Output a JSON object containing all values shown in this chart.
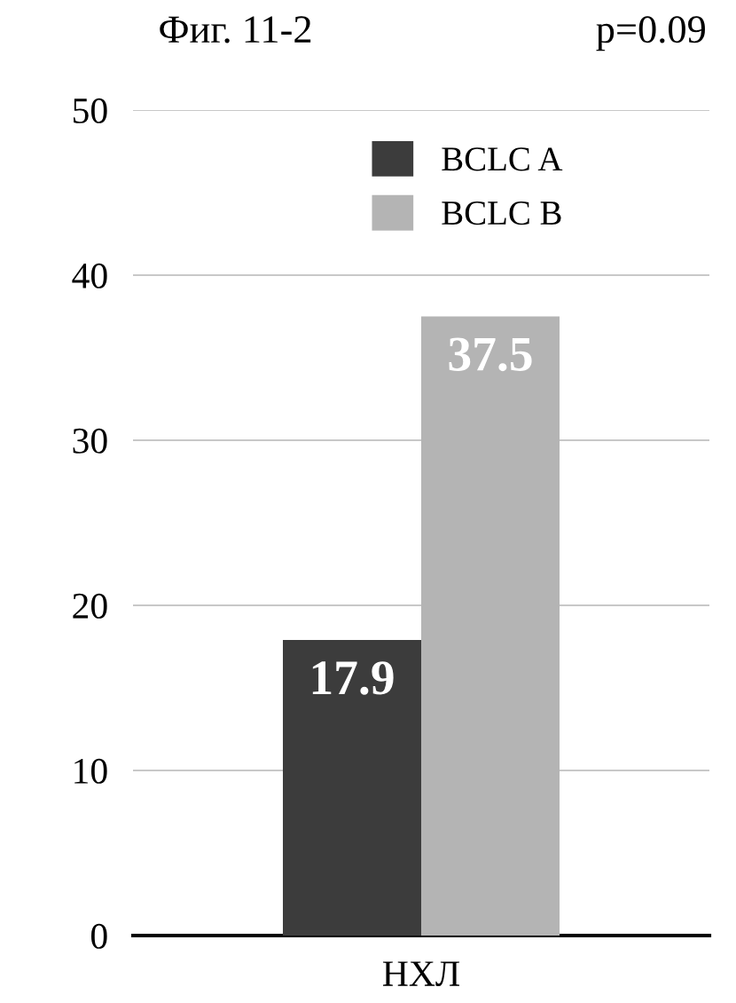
{
  "chart_data": {
    "type": "bar",
    "title": "Фиг. 11-2",
    "annotations": [
      "p=0.09"
    ],
    "categories": [
      "НХЛ"
    ],
    "series": [
      {
        "name": "BCLC A",
        "color": "#3c3c3c",
        "values": [
          17.9
        ]
      },
      {
        "name": "BCLC B",
        "color": "#b4b4b4",
        "values": [
          37.5
        ]
      }
    ],
    "ylim": [
      0,
      50
    ],
    "yticks": [
      0,
      10,
      20,
      30,
      40,
      50
    ],
    "grid": "y",
    "legend": "top",
    "data_labels": true
  }
}
